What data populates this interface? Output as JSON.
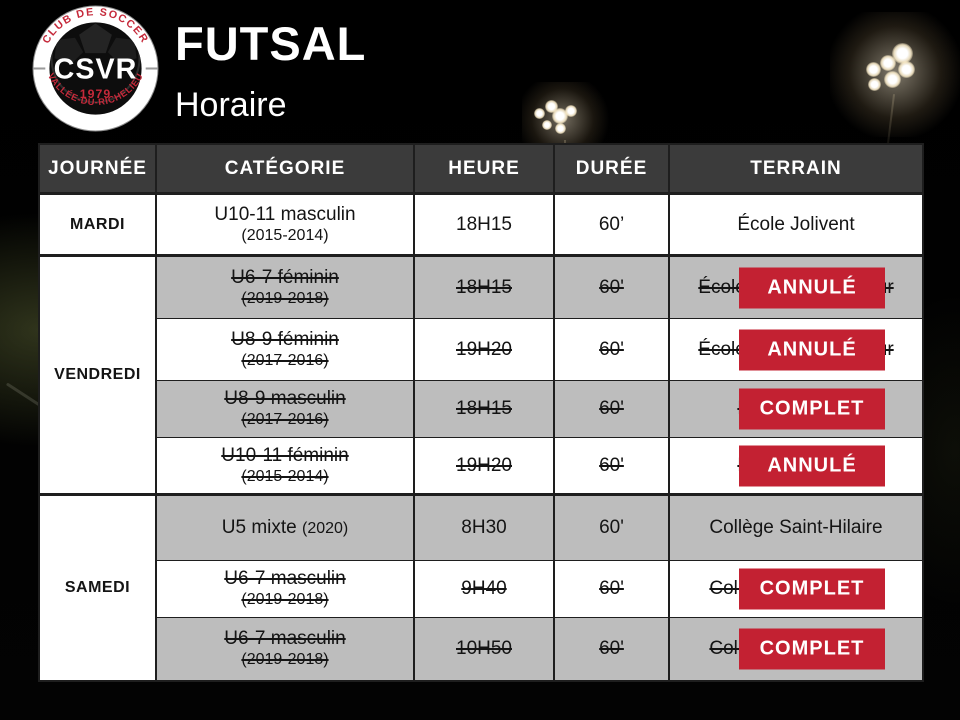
{
  "header": {
    "title": "FUTSAL",
    "subtitle": "Horaire"
  },
  "logo": {
    "club_line": "CLUB DE SOCCER",
    "region_line": "VALLÉE-DU-RICHELIEU",
    "acronym": "CSVR",
    "year": "1979"
  },
  "colors": {
    "header_bg": "#3b3b3b",
    "row_gray": "#bdbdbd",
    "row_white": "#ffffff",
    "badge_red": "#c32132",
    "logo_red": "#c5293a",
    "border": "#1e1e1e"
  },
  "table": {
    "headers": [
      "JOURNÉE",
      "CATÉGORIE",
      "HEURE",
      "DURÉE",
      "TERRAIN"
    ],
    "groups": [
      {
        "day": "MARDI",
        "rows": [
          {
            "category": "U10-11 masculin",
            "years": "(2015-2014)",
            "inline": false,
            "time": "18H15",
            "duration": "60’",
            "field": "École Jolivent",
            "struck": false,
            "badge": null,
            "shade": "white"
          }
        ]
      },
      {
        "day": "VENDREDI",
        "rows": [
          {
            "category": "U6-7 féminin",
            "years": "(2019-2018)",
            "inline": false,
            "time": "18H15",
            "duration": "60'",
            "field": "École Le Petit-Bonheur",
            "struck": true,
            "badge": "ANNULÉ",
            "shade": "gray"
          },
          {
            "category": "U8-9 féminin",
            "years": "(2017-2016)",
            "inline": false,
            "time": "19H20",
            "duration": "60'",
            "field": "École Le Petit-Bonheur",
            "struck": true,
            "badge": "ANNULÉ",
            "shade": "white"
          },
          {
            "category": "U8-9 masculin",
            "years": "(2017-2016)",
            "inline": false,
            "time": "18H15",
            "duration": "60'",
            "field": "École Jolivent",
            "struck": true,
            "badge": "COMPLET",
            "shade": "gray"
          },
          {
            "category": "U10-11 féminin",
            "years": "(2015-2014)",
            "inline": false,
            "time": "19H20",
            "duration": "60'",
            "field": "École Jolivent",
            "struck": true,
            "badge": "ANNULÉ",
            "shade": "white"
          }
        ]
      },
      {
        "day": "SAMEDI",
        "rows": [
          {
            "category": "U5 mixte",
            "years": "(2020)",
            "inline": true,
            "time": "8H30",
            "duration": "60'",
            "field": "Collège Saint-Hilaire",
            "struck": false,
            "badge": null,
            "shade": "gray"
          },
          {
            "category": "U6-7 masculin",
            "years": "(2019-2018)",
            "inline": false,
            "time": "9H40",
            "duration": "60'",
            "field": "Collège Saint-Hilaire",
            "struck": true,
            "badge": "COMPLET",
            "shade": "white"
          },
          {
            "category": "U6-7 masculin",
            "years": "(2019-2018)",
            "inline": false,
            "time": "10H50",
            "duration": "60'",
            "field": "Collège Saint-Hilaire",
            "struck": true,
            "badge": "COMPLET",
            "shade": "gray"
          }
        ]
      }
    ]
  }
}
